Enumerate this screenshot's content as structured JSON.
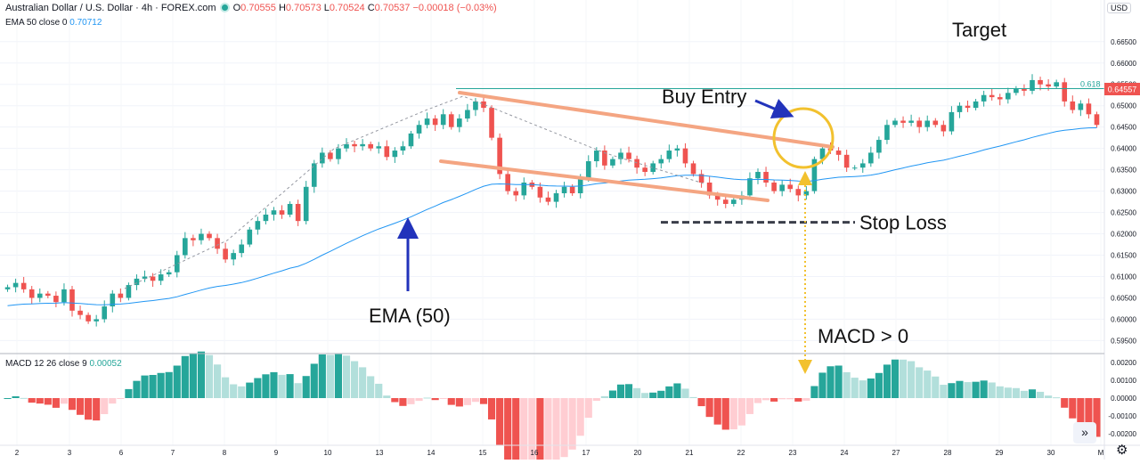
{
  "header": {
    "symbol": "Australian Dollar / U.S. Dollar · 4h · FOREX.com",
    "o_label": "O",
    "o": "0.70555",
    "h_label": "H",
    "h": "0.70573",
    "l_label": "L",
    "l": "0.70524",
    "c_label": "C",
    "c": "0.70537",
    "change": "−0.00018 (−0.03%)",
    "currency": "USD"
  },
  "ema_legend": {
    "label": "EMA 50 close 0",
    "value": "0.70712"
  },
  "macd_legend": {
    "label": "MACD 12 26 close 9",
    "value": "0.00052"
  },
  "controls": {
    "scroll_right": "»",
    "settings": "⚙"
  },
  "colors": {
    "up": "#26a69a",
    "down": "#ef5350",
    "ema": "#2196f3",
    "channel": "#f4a582",
    "target_line": "#26a69a",
    "macd_up": "#26a69a",
    "macd_up_light": "#b2dfdb",
    "macd_down": "#ef5350",
    "macd_down_light": "#ffcdd2",
    "callout": "#f2c12e",
    "arrow": "#2233bb"
  },
  "annotations": {
    "target": "Target",
    "buy_entry": "Buy Entry",
    "stop_loss": "Stop Loss",
    "ema": "EMA (50)",
    "macd": "MACD > 0",
    "fib": "0.618"
  },
  "chart_data": [
    {
      "type": "candlestick",
      "title": "Australian Dollar / U.S. Dollar · 4h · FOREX.com",
      "x_ticks": [
        "2",
        "3",
        "6",
        "7",
        "8",
        "9",
        "10",
        "13",
        "14",
        "15",
        "16",
        "17",
        "20",
        "21",
        "22",
        "23",
        "24",
        "27",
        "28",
        "29",
        "30",
        "M"
      ],
      "y_ticks": [
        "0.66500",
        "0.66000",
        "0.65500",
        "0.65000",
        "0.64500",
        "0.64000",
        "0.63500",
        "0.63000",
        "0.62500",
        "0.62000",
        "0.61500",
        "0.61000",
        "0.60500",
        "0.60000",
        "0.59500"
      ],
      "ylim": [
        0.593,
        0.6685
      ],
      "last_price": "0.64557",
      "target_level": 0.654,
      "stop_loss_level": 0.6227,
      "close": [
        0.6075,
        0.6085,
        0.607,
        0.605,
        0.606,
        0.6055,
        0.604,
        0.607,
        0.602,
        0.601,
        0.5995,
        0.6,
        0.603,
        0.606,
        0.605,
        0.608,
        0.6095,
        0.61,
        0.609,
        0.6105,
        0.611,
        0.615,
        0.619,
        0.6185,
        0.62,
        0.619,
        0.6165,
        0.614,
        0.6155,
        0.6175,
        0.621,
        0.623,
        0.6245,
        0.6255,
        0.6245,
        0.627,
        0.623,
        0.631,
        0.6365,
        0.639,
        0.6375,
        0.64,
        0.641,
        0.6405,
        0.641,
        0.64,
        0.6405,
        0.638,
        0.6395,
        0.6405,
        0.6435,
        0.6455,
        0.647,
        0.6455,
        0.648,
        0.645,
        0.647,
        0.649,
        0.651,
        0.6495,
        0.6425,
        0.634,
        0.63,
        0.629,
        0.632,
        0.631,
        0.6285,
        0.6275,
        0.6295,
        0.631,
        0.6295,
        0.633,
        0.637,
        0.6395,
        0.636,
        0.6375,
        0.639,
        0.6375,
        0.6355,
        0.6345,
        0.6365,
        0.6375,
        0.6395,
        0.64,
        0.6365,
        0.634,
        0.632,
        0.629,
        0.628,
        0.627,
        0.628,
        0.629,
        0.633,
        0.6345,
        0.632,
        0.63,
        0.6315,
        0.6305,
        0.629,
        0.63,
        0.6375,
        0.64,
        0.6395,
        0.6385,
        0.6355,
        0.6355,
        0.6365,
        0.639,
        0.642,
        0.6455,
        0.6465,
        0.646,
        0.6465,
        0.645,
        0.6465,
        0.6455,
        0.644,
        0.6485,
        0.65,
        0.6495,
        0.651,
        0.6525,
        0.652,
        0.6515,
        0.653,
        0.654,
        0.6535,
        0.656,
        0.655,
        0.6545,
        0.6555,
        0.651,
        0.649,
        0.6505,
        0.648,
        0.6455
      ]
    },
    {
      "type": "bar",
      "title": "MACD 12 26 close 9",
      "y_ticks": [
        "0.00200",
        "0.00100",
        "0.00000",
        "-0.00100",
        "-0.00200"
      ],
      "ylim": [
        -0.0025,
        0.0023
      ]
    }
  ]
}
